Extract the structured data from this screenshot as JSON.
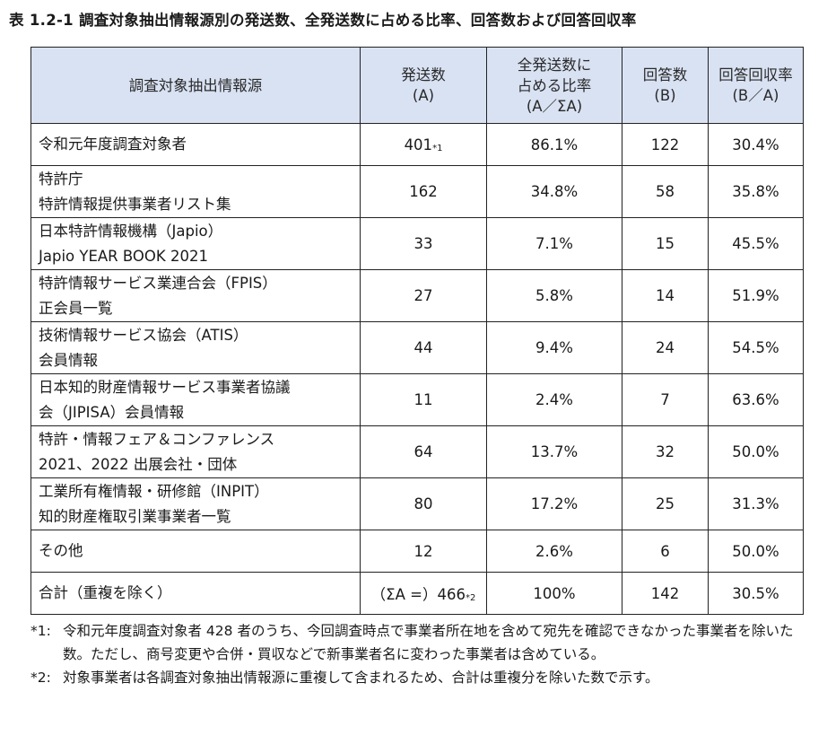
{
  "title": "表 1.2-1 調査対象抽出情報源別の発送数、全発送数に占める比率、回答数および回答回収率",
  "headers": {
    "source": [
      "調査対象抽出情報源"
    ],
    "sent": [
      "発送数",
      "(A)"
    ],
    "ratio": [
      "全発送数に",
      "占める比率",
      "(A／ΣA)"
    ],
    "responses": [
      "回答数",
      "(B)"
    ],
    "rate": [
      "回答回収率",
      "(B／A)"
    ]
  },
  "rows": [
    {
      "source": [
        "令和元年度調査対象者"
      ],
      "sent": "401",
      "sent_note": "*1",
      "ratio": "86.1%",
      "responses": "122",
      "rate": "30.4%"
    },
    {
      "source": [
        "特許庁",
        "特許情報提供事業者リスト集"
      ],
      "sent": "162",
      "sent_note": "",
      "ratio": "34.8%",
      "responses": "58",
      "rate": "35.8%"
    },
    {
      "source": [
        "日本特許情報機構（Japio）",
        "Japio YEAR BOOK 2021"
      ],
      "sent": "33",
      "sent_note": "",
      "ratio": "7.1%",
      "responses": "15",
      "rate": "45.5%"
    },
    {
      "source": [
        "特許情報サービス業連合会（FPIS）",
        "正会員一覧"
      ],
      "sent": "27",
      "sent_note": "",
      "ratio": "5.8%",
      "responses": "14",
      "rate": "51.9%"
    },
    {
      "source": [
        "技術情報サービス協会（ATIS）",
        "会員情報"
      ],
      "sent": "44",
      "sent_note": "",
      "ratio": "9.4%",
      "responses": "24",
      "rate": "54.5%"
    },
    {
      "source": [
        "日本知的財産情報サービス事業者協議",
        "会（JIPISA）会員情報"
      ],
      "sent": "11",
      "sent_note": "",
      "ratio": "2.4%",
      "responses": "7",
      "rate": "63.6%"
    },
    {
      "source": [
        "特許・情報フェア＆コンファレンス",
        "2021、2022 出展会社・団体"
      ],
      "sent": "64",
      "sent_note": "",
      "ratio": "13.7%",
      "responses": "32",
      "rate": "50.0%"
    },
    {
      "source": [
        "工業所有権情報・研修館（INPIT）",
        "知的財産権取引業事業者一覧"
      ],
      "sent": "80",
      "sent_note": "",
      "ratio": "17.2%",
      "responses": "25",
      "rate": "31.3%"
    },
    {
      "source": [
        "その他"
      ],
      "sent": "12",
      "sent_note": "",
      "ratio": "2.6%",
      "responses": "6",
      "rate": "50.0%"
    },
    {
      "source": [
        "合計（重複を除く）"
      ],
      "sent": "（ΣA =）466",
      "sent_note": "*2",
      "ratio": "100%",
      "responses": "142",
      "rate": "30.5%"
    }
  ],
  "notes": [
    {
      "mark": "*1:",
      "text": "令和元年度調査対象者 428 者のうち、今回調査時点で事業者所在地を含めて宛先を確認できなかった事業者を除いた数。ただし、商号変更や合併・買収などで新事業者名に変わった事業者は含めている。"
    },
    {
      "mark": "*2:",
      "text": "対象事業者は各調査対象抽出情報源に重複して含まれるため、合計は重複分を除いた数で示す。"
    }
  ]
}
